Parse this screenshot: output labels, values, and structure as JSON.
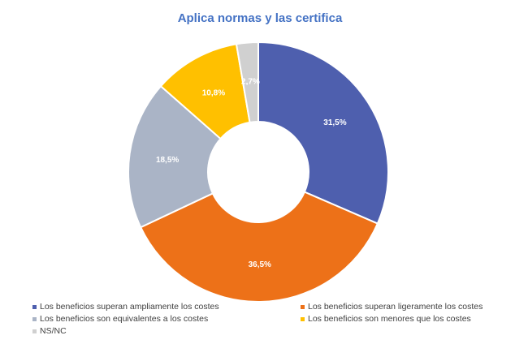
{
  "chart_data": {
    "type": "pie",
    "variant": "donut",
    "title": "Aplica normas y las certifica",
    "title_color": "#4472C4",
    "categories": [
      "Los beneficios superan ampliamente los costes",
      "Los beneficios superan ligeramente los costes",
      "Los beneficios son equivalentes a los costes",
      "Los beneficios son menores que los costes",
      "NS/NC"
    ],
    "values": [
      31.5,
      36.5,
      18.5,
      10.8,
      2.7
    ],
    "labels": [
      "31,5%",
      "36,5%",
      "18,5%",
      "10,8%",
      "2,7%"
    ],
    "colors": [
      "#4E5FAE",
      "#ED7118",
      "#AAB4C6",
      "#FFC000",
      "#D0D0D0"
    ],
    "legend_position": "bottom"
  }
}
